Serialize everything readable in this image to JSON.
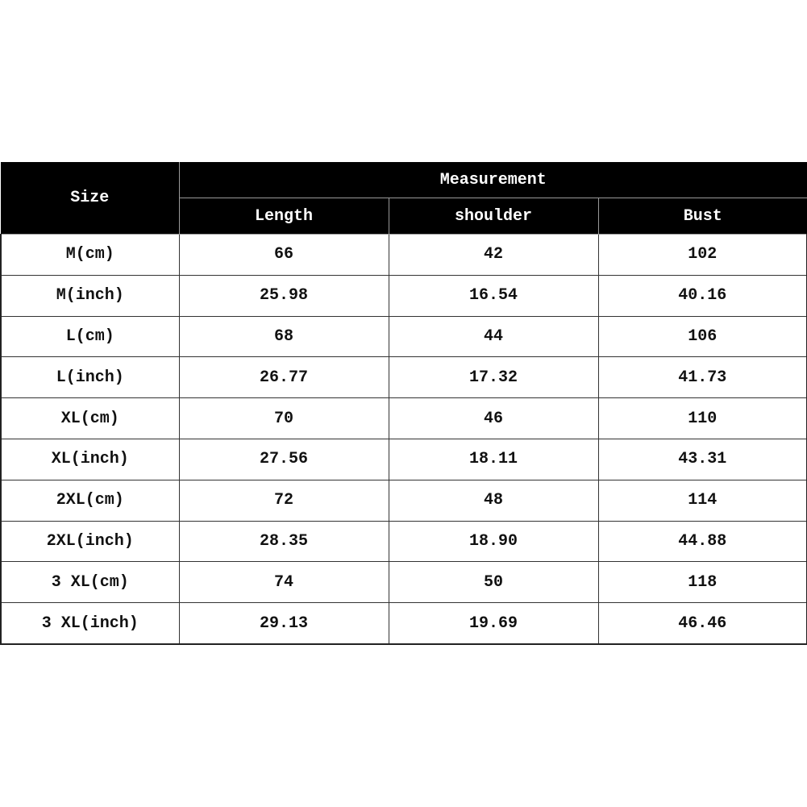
{
  "table": {
    "size_header": "Size",
    "group_header": "Measurement",
    "columns": [
      "Length",
      "shoulder",
      "Bust"
    ],
    "rows": [
      {
        "size": "M(cm)",
        "values": [
          "66",
          "42",
          "102"
        ]
      },
      {
        "size": "M(inch)",
        "values": [
          "25.98",
          "16.54",
          "40.16"
        ]
      },
      {
        "size": "L(cm)",
        "values": [
          "68",
          "44",
          "106"
        ]
      },
      {
        "size": "L(inch)",
        "values": [
          "26.77",
          "17.32",
          "41.73"
        ]
      },
      {
        "size": "XL(cm)",
        "values": [
          "70",
          "46",
          "110"
        ]
      },
      {
        "size": "XL(inch)",
        "values": [
          "27.56",
          "18.11",
          "43.31"
        ]
      },
      {
        "size": "2XL(cm)",
        "values": [
          "72",
          "48",
          "114"
        ]
      },
      {
        "size": "2XL(inch)",
        "values": [
          "28.35",
          "18.90",
          "44.88"
        ]
      },
      {
        "size": "3 XL(cm)",
        "values": [
          "74",
          "50",
          "118"
        ]
      },
      {
        "size": "3 XL(inch)",
        "values": [
          "29.13",
          "19.69",
          "46.46"
        ]
      }
    ],
    "header_bg": "#000000",
    "header_text": "#ffffff"
  }
}
